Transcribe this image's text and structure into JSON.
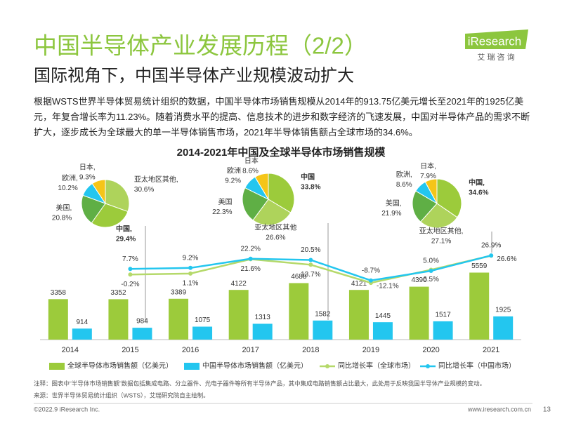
{
  "header": {
    "title": "中国半导体产业发展历程（2/2）",
    "subtitle": "国际视角下，中国半导体产业规模波动扩大",
    "logo": "iResearch",
    "logo_cn": "艾 瑞 咨 询"
  },
  "body": "根据WSTS世界半导体贸易统计组织的数据，中国半导体市场销售规模从2014年的913.75亿美元增长至2021年的1925亿美元，年复合增长率为11.23%。随着消费水平的提高、信息技术的进步和数字经济的飞速发展，中国对半导体产品的需求不断扩大，逐步成长为全球最大的单一半导体销售市场，2021年半导体销售额占全球市场的34.6%。",
  "chart_data": [
    {
      "type": "bar",
      "title": "2014-2021年中国及全球半导体市场销售规模",
      "categories": [
        "2014",
        "2015",
        "2016",
        "2017",
        "2018",
        "2019",
        "2020",
        "2021"
      ],
      "ylim": [
        0,
        7800
      ],
      "y2lim": [
        -93,
        41
      ],
      "series": [
        {
          "name": "全球半导体市场销售额（亿美元）",
          "type": "bar",
          "color": "#9ccb3b",
          "values": [
            3358,
            3352,
            3389,
            4122,
            4688,
            4121,
            4390,
            5559
          ]
        },
        {
          "name": "中国半导体市场销售额（亿美元）",
          "type": "bar",
          "color": "#23c6ef",
          "values": [
            914,
            984,
            1075,
            1313,
            1582,
            1445,
            1517,
            1925
          ]
        },
        {
          "name": "同比增长率（全球市场）",
          "type": "line",
          "axis": "y2",
          "color": "#b5d96a",
          "values": [
            null,
            -0.2,
            1.1,
            21.6,
            13.7,
            -12.1,
            6.5,
            26.6
          ],
          "value_labels": [
            null,
            "-0.2%",
            "1.1%",
            "21.6%",
            "13.7%",
            "-12.1%",
            "6.5%",
            "26.6%"
          ]
        },
        {
          "name": "同比增长率（中国市场）",
          "type": "line",
          "axis": "y2",
          "color": "#23c6ef",
          "values": [
            null,
            7.7,
            9.2,
            22.2,
            20.5,
            -8.7,
            5.0,
            26.9
          ],
          "value_labels": [
            null,
            "7.7%",
            "9.2%",
            "22.2%",
            "20.5%",
            "-8.7%",
            "5.0%",
            "26.9%"
          ]
        }
      ]
    },
    {
      "type": "pie",
      "categories": [
        "亚太地区其他,",
        "中国,",
        "美国,",
        "欧洲,",
        "日本,"
      ],
      "values": [
        30.6,
        29.4,
        20.8,
        10.2,
        9.3
      ],
      "value_labels": [
        "30.6%",
        "29.4%",
        "20.8%",
        "10.2%",
        "9.3%"
      ],
      "colors": [
        "#aed35b",
        "#9ccb3b",
        "#5faf45",
        "#23c6ef",
        "#f5c518"
      ]
    },
    {
      "type": "pie",
      "categories": [
        "中国",
        "亚太地区其他",
        "美国",
        "欧洲",
        "日本"
      ],
      "values": [
        33.8,
        26.6,
        22.3,
        9.2,
        8.6
      ],
      "value_labels": [
        "33.8%",
        "26.6%",
        "22.3%",
        "9.2%",
        "8.6%"
      ],
      "colors": [
        "#9ccb3b",
        "#aed35b",
        "#5faf45",
        "#23c6ef",
        "#f5c518"
      ]
    },
    {
      "type": "pie",
      "categories": [
        "中国,",
        "亚太地区其他,",
        "美国,",
        "欧洲,",
        "日本,"
      ],
      "values": [
        34.6,
        27.1,
        21.9,
        8.6,
        7.9
      ],
      "value_labels": [
        "34.6%",
        "27.1%",
        "21.9%",
        "8.6%",
        "7.9%"
      ],
      "colors": [
        "#9ccb3b",
        "#aed35b",
        "#5faf45",
        "#23c6ef",
        "#f5c518"
      ]
    }
  ],
  "notes": {
    "note": "注释：图表中“半导体市场销售额”数据包括集成电路、分立器件、光电子器件等所有半导体产品，其中集成电路销售额占比最大，此处用于反映我国半导体产业规模的变动。",
    "source": "来源：世界半导体贸易统计组织（WSTS），艾瑞研究院自主绘制。"
  },
  "footer": {
    "copyright": "©2022.9 iResearch Inc.",
    "website": "www.iresearch.com.cn",
    "page": "13"
  }
}
